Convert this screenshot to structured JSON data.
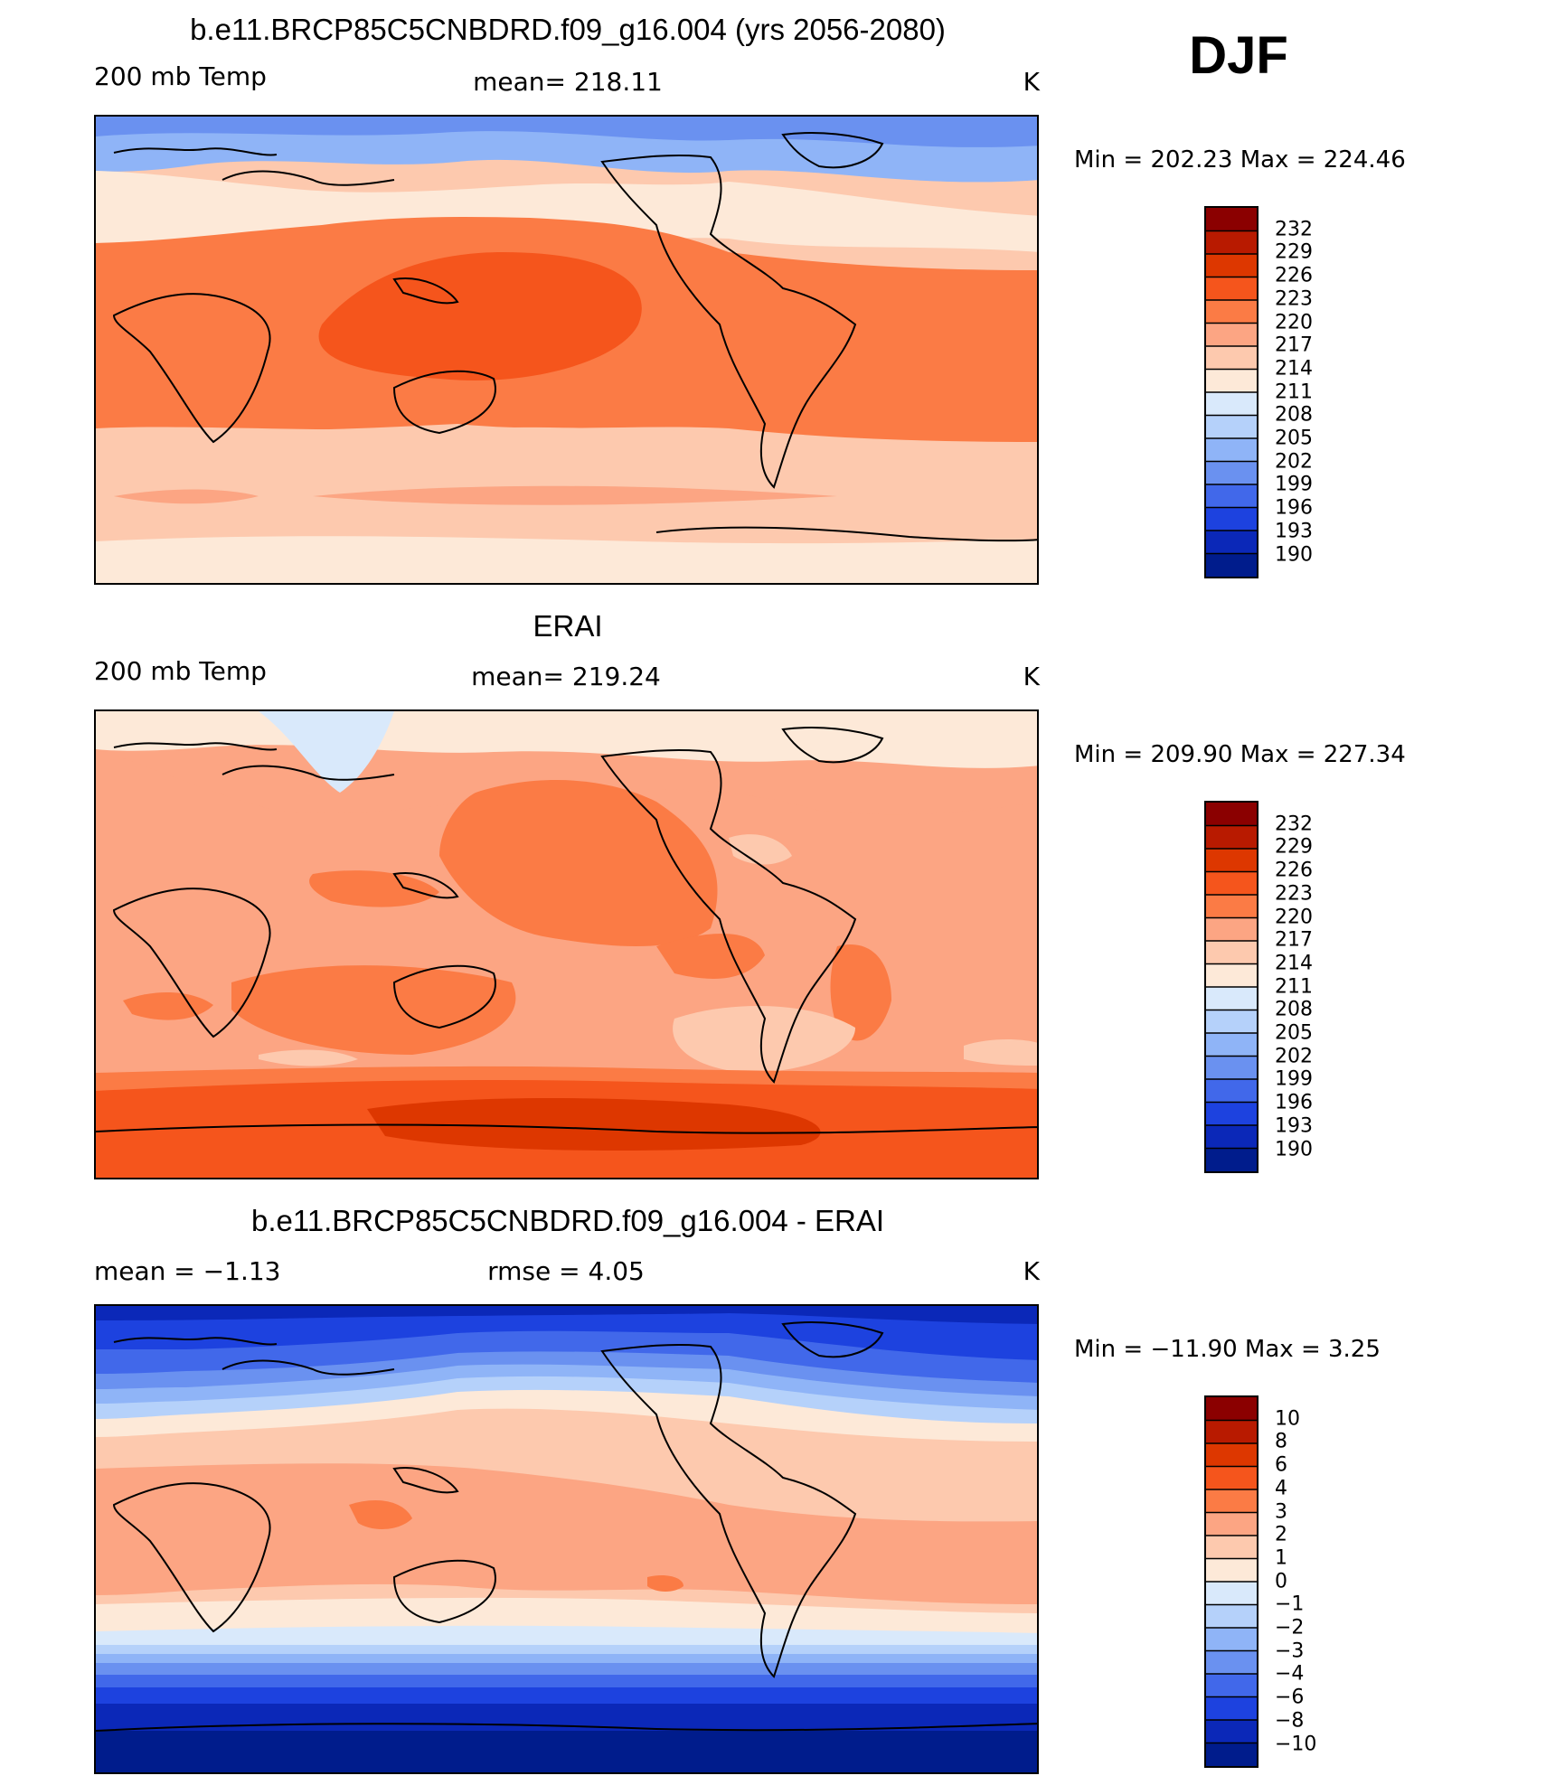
{
  "header": {
    "djf": "DJF"
  },
  "panels": [
    {
      "title": "b.e11.BRCP85C5CNBDRD.f09_g16.004 (yrs 2056-2080)",
      "left": "200 mb Temp",
      "middle": "mean=  218.11",
      "unit": "K",
      "minmax": "Min  =  202.23  Max  =  224.46",
      "colorbar": [
        "232",
        "229",
        "226",
        "223",
        "220",
        "217",
        "214",
        "211",
        "208",
        "205",
        "202",
        "199",
        "196",
        "193",
        "190"
      ]
    },
    {
      "title": "ERAI",
      "left": "200 mb Temp",
      "middle": "mean=  219.24",
      "unit": "K",
      "minmax": "Min  =  209.90  Max  =  227.34",
      "colorbar": [
        "232",
        "229",
        "226",
        "223",
        "220",
        "217",
        "214",
        "211",
        "208",
        "205",
        "202",
        "199",
        "196",
        "193",
        "190"
      ]
    },
    {
      "title": "b.e11.BRCP85C5CNBDRD.f09_g16.004 - ERAI",
      "left": "mean  =    −1.13",
      "middle": "rmse  =     4.05",
      "unit": "K",
      "minmax": "Min  =  −11.90  Max  =      3.25",
      "colorbar": [
        "10",
        "8",
        "6",
        "4",
        "3",
        "2",
        "1",
        "0",
        "−1",
        "−2",
        "−3",
        "−4",
        "−6",
        "−8",
        "−10"
      ]
    }
  ],
  "palette": [
    "#8b0000",
    "#b81a00",
    "#dd3700",
    "#f5551c",
    "#fb7b45",
    "#fca583",
    "#fdc9ae",
    "#fde9d8",
    "#d9e9fb",
    "#b5d1fa",
    "#8fb4f7",
    "#6a91f0",
    "#4168ea",
    "#1d42df",
    "#0b28b8",
    "#001c8c"
  ]
}
